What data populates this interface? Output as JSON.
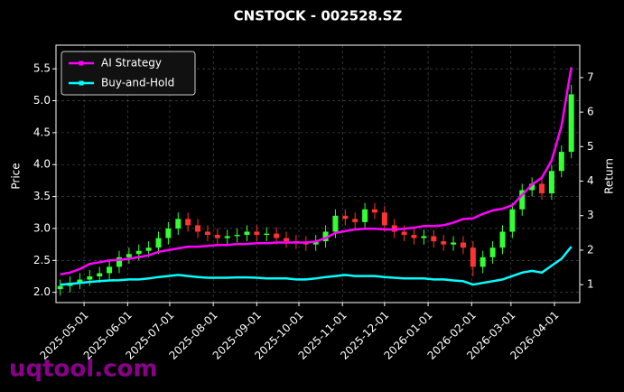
{
  "chart_data": {
    "type": "candlestick",
    "title": "CNSTOCK - 002528.SZ",
    "ylabel": "Price",
    "y2label": "Return",
    "watermark": "uqtool.com",
    "legend": "upper left",
    "grid": true,
    "up_color": "#33ff33",
    "down_color": "#ff3333",
    "xlim": [
      "2025-04-11",
      "2026-04-19"
    ],
    "xticks": [
      "2025-05-01",
      "2025-06-01",
      "2025-07-01",
      "2025-08-01",
      "2025-09-01",
      "2025-10-01",
      "2025-11-01",
      "2025-12-01",
      "2026-01-01",
      "2026-02-01",
      "2026-03-01",
      "2026-04-01"
    ],
    "ylim": [
      1.84,
      5.87
    ],
    "yticks": [
      {
        "value": 2,
        "label": "2.0"
      },
      2.5,
      {
        "value": 3,
        "label": "3.0"
      },
      3.5,
      {
        "value": 4,
        "label": "4.0"
      },
      4.5,
      {
        "value": 5,
        "label": "5.0"
      },
      5.5
    ],
    "y2lim": [
      0.48,
      7.94
    ],
    "y2ticks": [
      1,
      2,
      3,
      4,
      5,
      6,
      7
    ],
    "x": [
      "2025-04-14",
      "2025-04-21",
      "2025-04-28",
      "2025-05-05",
      "2025-05-12",
      "2025-05-19",
      "2025-05-26",
      "2025-06-02",
      "2025-06-09",
      "2025-06-16",
      "2025-06-23",
      "2025-06-30",
      "2025-07-07",
      "2025-07-14",
      "2025-07-21",
      "2025-07-28",
      "2025-08-04",
      "2025-08-11",
      "2025-08-18",
      "2025-08-25",
      "2025-09-01",
      "2025-09-08",
      "2025-09-15",
      "2025-09-22",
      "2025-09-29",
      "2025-10-06",
      "2025-10-13",
      "2025-10-20",
      "2025-10-27",
      "2025-11-03",
      "2025-11-10",
      "2025-11-17",
      "2025-11-24",
      "2025-12-01",
      "2025-12-08",
      "2025-12-15",
      "2025-12-22",
      "2025-12-29",
      "2026-01-05",
      "2026-01-12",
      "2026-01-19",
      "2026-01-26",
      "2026-02-02",
      "2026-02-09",
      "2026-02-16",
      "2026-02-23",
      "2026-03-02",
      "2026-03-09",
      "2026-03-16",
      "2026-03-23",
      "2026-03-30",
      "2026-04-06",
      "2026-04-13"
    ],
    "open": [
      2.05,
      2.1,
      2.15,
      2.2,
      2.25,
      2.3,
      2.4,
      2.55,
      2.6,
      2.65,
      2.7,
      2.85,
      3.0,
      3.15,
      3.05,
      2.95,
      2.9,
      2.85,
      2.88,
      2.9,
      2.95,
      2.9,
      2.92,
      2.85,
      2.8,
      2.78,
      2.75,
      2.8,
      2.95,
      3.2,
      3.15,
      3.1,
      3.3,
      3.25,
      3.05,
      2.95,
      2.9,
      2.85,
      2.88,
      2.8,
      2.75,
      2.78,
      2.7,
      2.4,
      2.55,
      2.7,
      2.95,
      3.3,
      3.6,
      3.7,
      3.55,
      3.9,
      4.2
    ],
    "high": [
      2.2,
      2.25,
      2.3,
      2.35,
      2.4,
      2.5,
      2.65,
      2.7,
      2.75,
      2.8,
      2.95,
      3.1,
      3.25,
      3.25,
      3.15,
      3.05,
      3.0,
      2.98,
      3.0,
      3.05,
      3.05,
      3.02,
      3.02,
      2.95,
      2.9,
      2.88,
      2.9,
      3.05,
      3.3,
      3.3,
      3.25,
      3.4,
      3.4,
      3.35,
      3.15,
      3.05,
      3.0,
      2.98,
      2.98,
      2.9,
      2.88,
      2.88,
      2.8,
      2.65,
      2.8,
      3.05,
      3.4,
      3.7,
      3.8,
      3.8,
      4.0,
      4.3,
      5.25
    ],
    "low": [
      1.95,
      2.0,
      2.05,
      2.1,
      2.15,
      2.2,
      2.3,
      2.45,
      2.5,
      2.55,
      2.6,
      2.75,
      2.9,
      2.95,
      2.85,
      2.8,
      2.75,
      2.75,
      2.78,
      2.8,
      2.8,
      2.8,
      2.75,
      2.7,
      2.68,
      2.65,
      2.65,
      2.7,
      2.85,
      3.05,
      3.0,
      3.0,
      3.15,
      2.95,
      2.85,
      2.8,
      2.75,
      2.75,
      2.7,
      2.65,
      2.65,
      2.6,
      2.25,
      2.3,
      2.45,
      2.6,
      2.85,
      3.2,
      3.5,
      3.45,
      3.45,
      3.8,
      4.1
    ],
    "close": [
      2.1,
      2.15,
      2.2,
      2.25,
      2.3,
      2.4,
      2.55,
      2.6,
      2.65,
      2.7,
      2.85,
      3.0,
      3.15,
      3.05,
      2.95,
      2.9,
      2.85,
      2.88,
      2.9,
      2.95,
      2.9,
      2.92,
      2.85,
      2.8,
      2.78,
      2.75,
      2.8,
      2.95,
      3.2,
      3.15,
      3.1,
      3.3,
      3.25,
      3.05,
      2.95,
      2.9,
      2.85,
      2.88,
      2.8,
      2.75,
      2.78,
      2.7,
      2.4,
      2.55,
      2.7,
      2.95,
      3.3,
      3.6,
      3.7,
      3.55,
      3.9,
      4.2,
      5.1
    ],
    "series": [
      {
        "name": "AI Strategy",
        "color": "#ff00ff",
        "axis": "y2",
        "values": [
          1.3,
          1.35,
          1.45,
          1.6,
          1.65,
          1.7,
          1.72,
          1.75,
          1.8,
          1.85,
          1.95,
          2.0,
          2.05,
          2.1,
          2.1,
          2.12,
          2.15,
          2.15,
          2.18,
          2.18,
          2.2,
          2.2,
          2.22,
          2.22,
          2.22,
          2.22,
          2.25,
          2.35,
          2.5,
          2.55,
          2.6,
          2.62,
          2.62,
          2.6,
          2.6,
          2.62,
          2.65,
          2.7,
          2.7,
          2.72,
          2.8,
          2.9,
          2.92,
          3.05,
          3.15,
          3.2,
          3.3,
          3.6,
          3.9,
          4.1,
          4.6,
          5.6,
          7.3
        ]
      },
      {
        "name": "Buy-and-Hold",
        "color": "#00ffff",
        "axis": "y2",
        "values": [
          1.0,
          1.02,
          1.05,
          1.08,
          1.1,
          1.12,
          1.13,
          1.15,
          1.15,
          1.18,
          1.22,
          1.25,
          1.28,
          1.25,
          1.22,
          1.2,
          1.2,
          1.2,
          1.21,
          1.21,
          1.2,
          1.18,
          1.18,
          1.18,
          1.15,
          1.15,
          1.18,
          1.22,
          1.25,
          1.28,
          1.25,
          1.25,
          1.25,
          1.22,
          1.2,
          1.18,
          1.18,
          1.18,
          1.15,
          1.15,
          1.12,
          1.1,
          1.0,
          1.05,
          1.1,
          1.15,
          1.25,
          1.35,
          1.4,
          1.35,
          1.55,
          1.75,
          2.1
        ]
      }
    ]
  }
}
